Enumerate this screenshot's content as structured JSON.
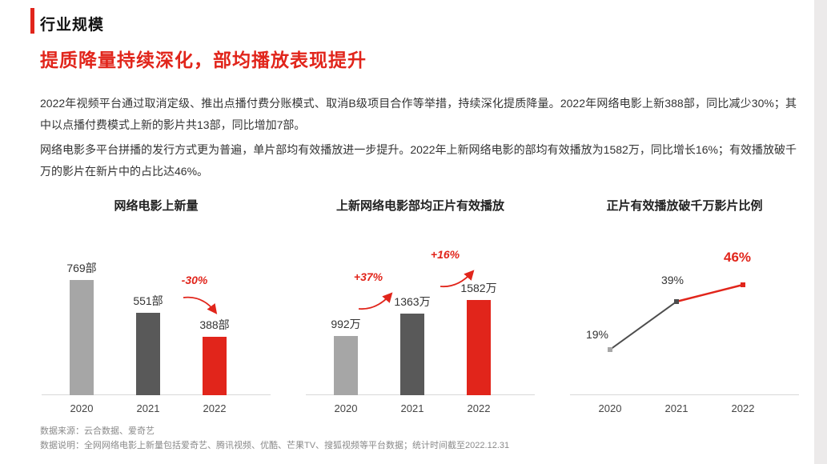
{
  "page": {
    "kicker": "行业规模",
    "title": "提质降量持续深化，部均播放表现提升",
    "paragraph1": "2022年视频平台通过取消定级、推出点播付费分账模式、取消B级项目合作等举措，持续深化提质降量。2022年网络电影上新388部，同比减少30%；其中以点播付费模式上新的影片共13部，同比增加7部。",
    "paragraph2": "网络电影多平台拼播的发行方式更为普遍，单片部均有效播放进一步提升。2022年上新网络电影的部均有效播放为1582万，同比增长16%；有效播放破千万的影片在新片中的占比达46%。",
    "footnote1": "数据来源：云合数据、爱奇艺",
    "footnote2": "数据说明：全网网络电影上新量包括爱奇艺、腾讯视频、优酷、芒果TV、搜狐视频等平台数据；统计时间截至2022.12.31"
  },
  "colors": {
    "accent_red": "#e1251b",
    "bar_light_gray": "#a6a6a6",
    "bar_dark_gray": "#595959",
    "axis_gray": "#d9d9d9"
  },
  "chart_data": [
    {
      "type": "bar",
      "title": "网络电影上新量",
      "categories": [
        "2020",
        "2021",
        "2022"
      ],
      "values": [
        769,
        551,
        388
      ],
      "value_labels": [
        "769部",
        "551部",
        "388部"
      ],
      "bar_colors": [
        "#a6a6a6",
        "#595959",
        "#e1251b"
      ],
      "annotations": [
        {
          "text": "-30%",
          "from": "2021",
          "to": "2022",
          "direction": "down"
        }
      ],
      "xlabel": "",
      "ylabel": "",
      "ylim": [
        0,
        800
      ],
      "grid": false,
      "legend": false
    },
    {
      "type": "bar",
      "title": "上新网络电影部均正片有效播放",
      "categories": [
        "2020",
        "2021",
        "2022"
      ],
      "values": [
        992,
        1363,
        1582
      ],
      "value_labels": [
        "992万",
        "1363万",
        "1582万"
      ],
      "bar_colors": [
        "#a6a6a6",
        "#595959",
        "#e1251b"
      ],
      "annotations": [
        {
          "text": "+37%",
          "from": "2020",
          "to": "2021",
          "direction": "up"
        },
        {
          "text": "+16%",
          "from": "2021",
          "to": "2022",
          "direction": "up"
        }
      ],
      "xlabel": "",
      "ylabel": "",
      "ylim": [
        0,
        2000
      ],
      "grid": false,
      "legend": false
    },
    {
      "type": "line",
      "title": "正片有效播放破千万影片比例",
      "categories": [
        "2020",
        "2021",
        "2022"
      ],
      "values": [
        19,
        39,
        46
      ],
      "value_labels": [
        "19%",
        "39%",
        "46%"
      ],
      "segment_colors": [
        "#4d4d4d",
        "#e1251b"
      ],
      "marker_colors": [
        "#a6a6a6",
        "#4d4d4d",
        "#e1251b"
      ],
      "xlabel": "",
      "ylabel": "",
      "ylim": [
        0,
        50
      ],
      "grid": false,
      "legend": false
    }
  ]
}
